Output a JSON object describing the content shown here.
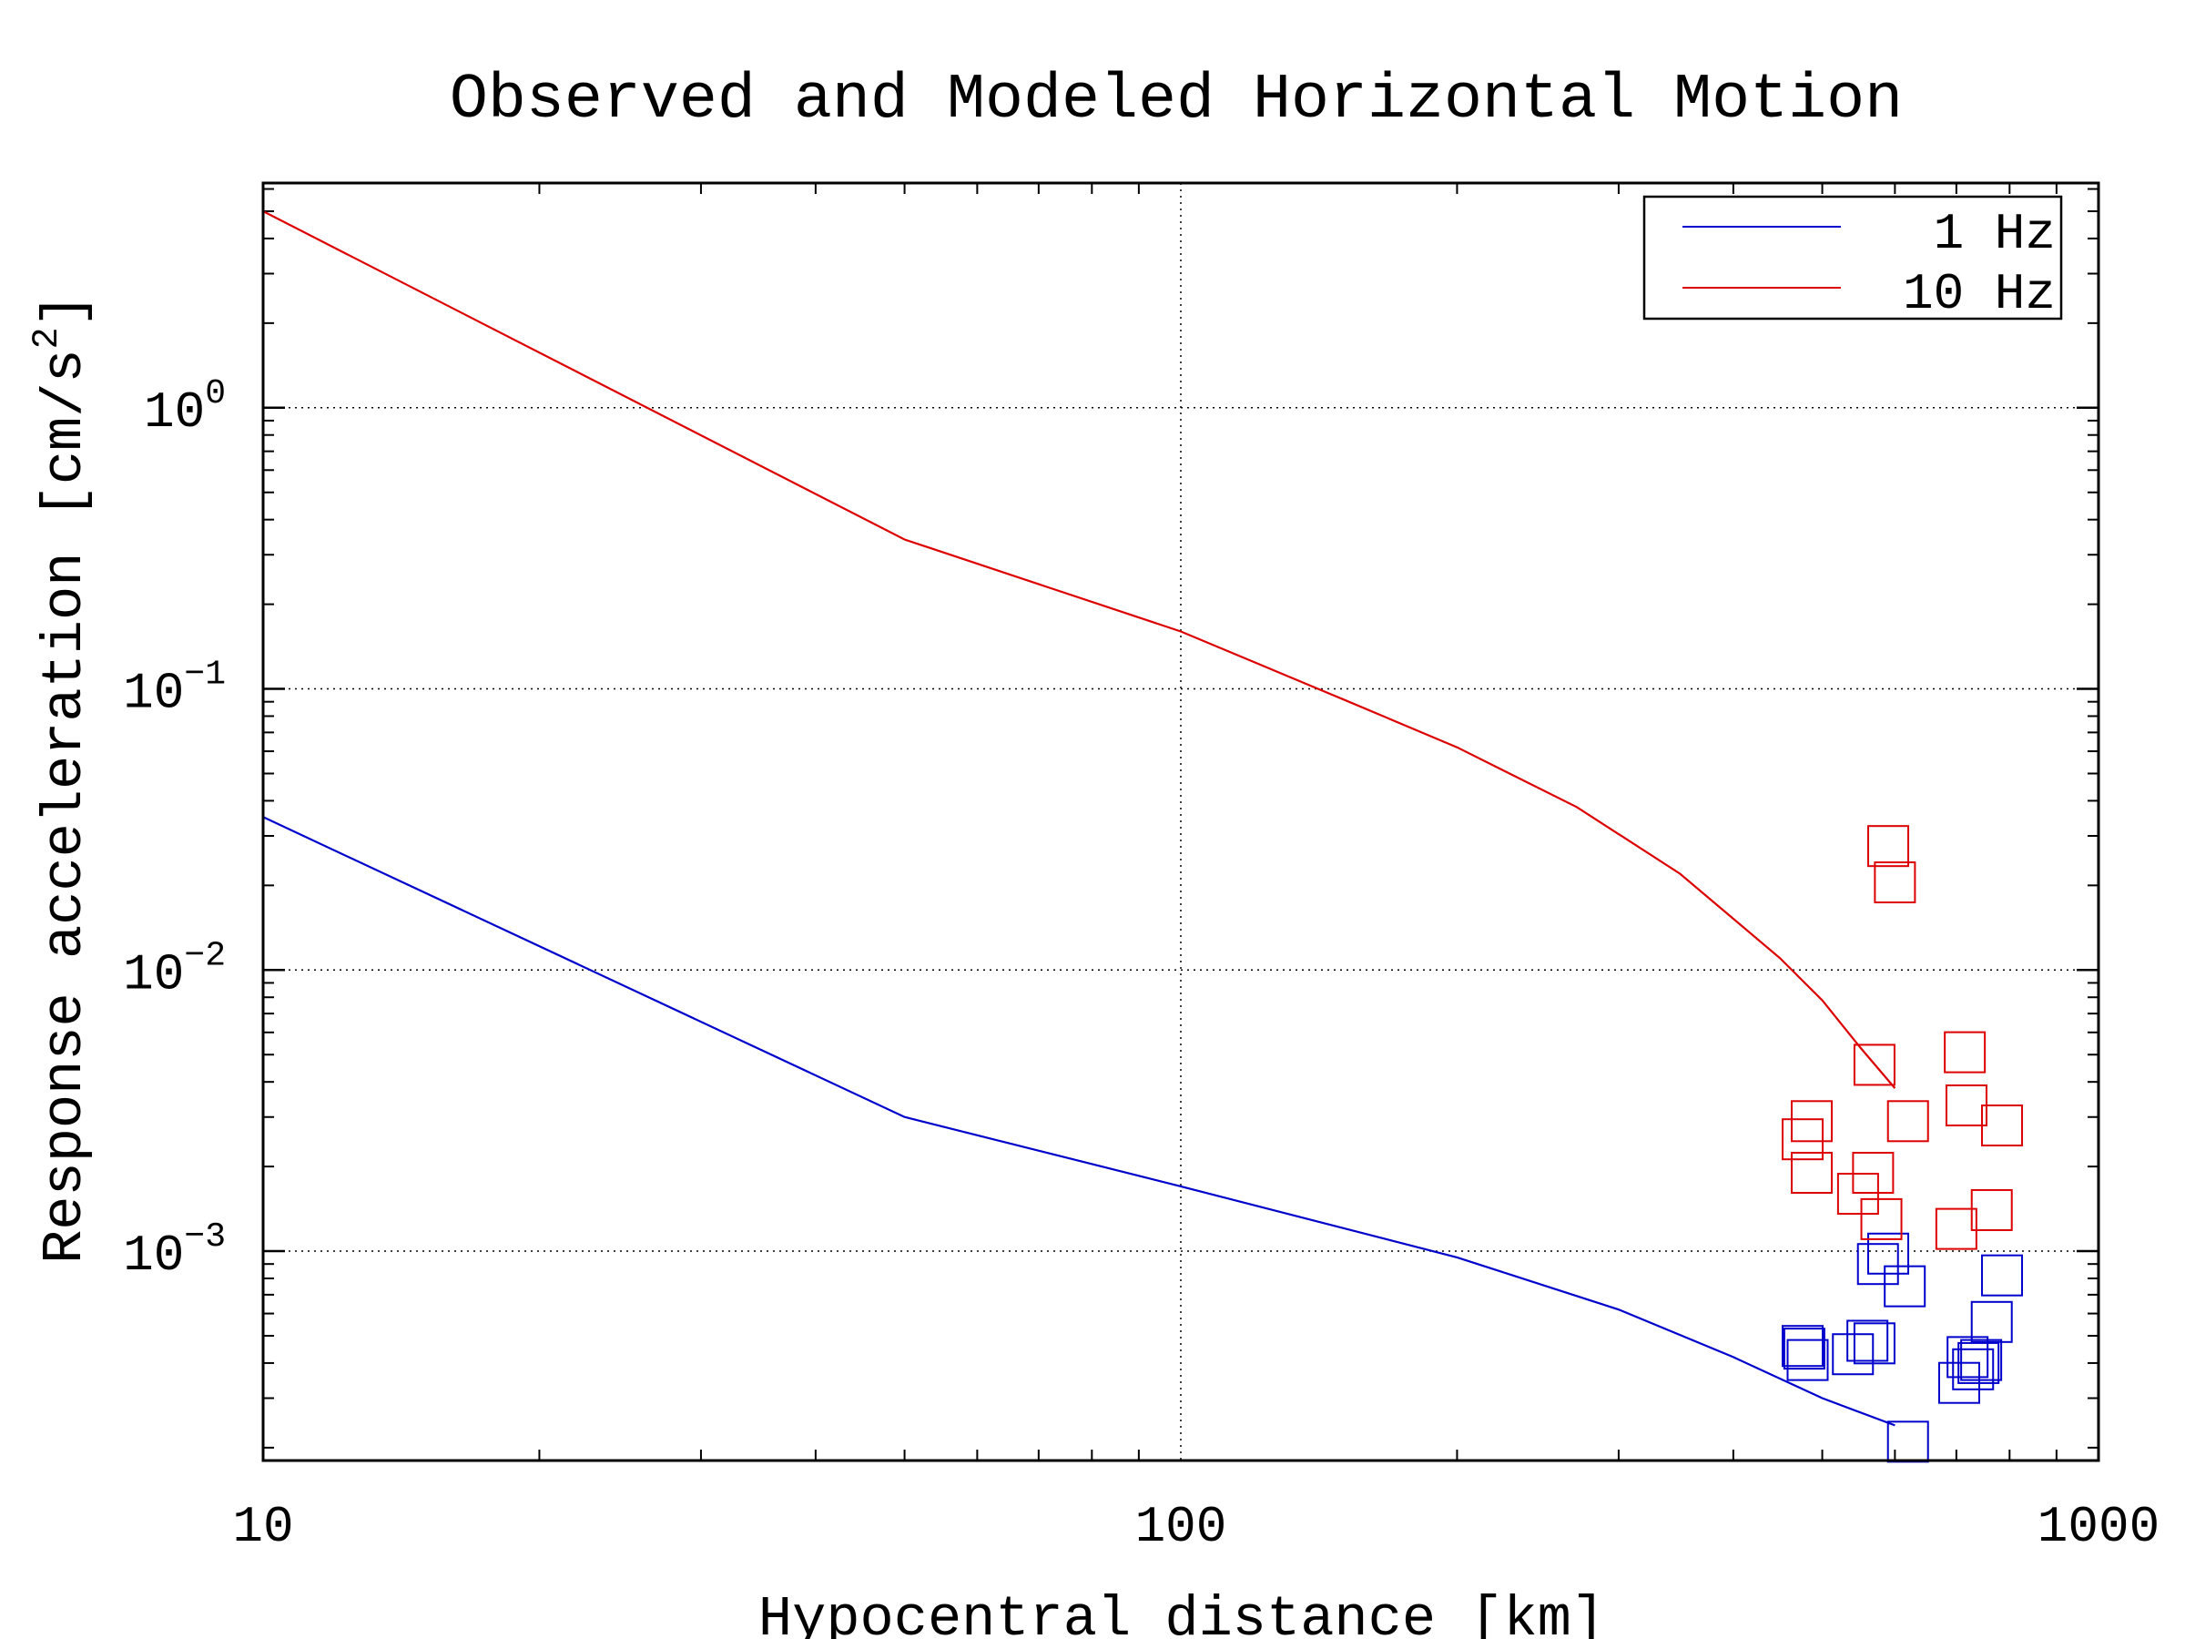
{
  "chart_data": {
    "type": "scatter",
    "title": "Observed and Modeled Horizontal Motion",
    "xlabel": "Hypocentral distance [km]",
    "ylabel_main": "Response acceleration [cm/s",
    "ylabel_sup": "2",
    "ylabel_end": "]",
    "x_scale": "log",
    "y_scale": "log",
    "xlim": [
      10,
      1000
    ],
    "ylim": [
      0.00018,
      6.3
    ],
    "x_ticks": [
      {
        "value": 10,
        "label": "10"
      },
      {
        "value": 100,
        "label": "100"
      },
      {
        "value": 1000,
        "label": "1000"
      }
    ],
    "y_ticks": [
      {
        "value": 1,
        "base": "10",
        "exp": "0"
      },
      {
        "value": 0.1,
        "base": "10",
        "exp": "−1"
      },
      {
        "value": 0.01,
        "base": "10",
        "exp": "−2"
      },
      {
        "value": 0.001,
        "base": "10",
        "exp": "−3"
      }
    ],
    "grid": true,
    "legend_position": "top-right",
    "series": [
      {
        "name": "1 Hz",
        "color": "#0000cc",
        "line": {
          "x": [
            10,
            50,
            100,
            200,
            300,
            400,
            500,
            600
          ],
          "y": [
            0.035,
            0.003,
            0.0017,
            0.00095,
            0.00062,
            0.00042,
            0.0003,
            0.00024
          ]
        },
        "observed": {
          "x": [
            476,
            478,
            482,
            540,
            560,
            570,
            575,
            590,
            615,
            620,
            705,
            720,
            730,
            740,
            745,
            765,
            785
          ],
          "y": [
            0.00046,
            0.00045,
            0.00041,
            0.00043,
            0.00048,
            0.00047,
            0.0009,
            0.00098,
            0.00075,
            0.00021,
            0.00034,
            0.00042,
            0.00038,
            0.0004,
            0.00041,
            0.00056,
            0.00082
          ]
        }
      },
      {
        "name": "10 Hz",
        "color": "#dd0000",
        "line": {
          "x": [
            10,
            50,
            100,
            150,
            200,
            270,
            350,
            450,
            500,
            550,
            600
          ],
          "y": [
            5.0,
            0.34,
            0.16,
            0.092,
            0.062,
            0.038,
            0.022,
            0.011,
            0.0078,
            0.0053,
            0.0038
          ]
        },
        "observed": {
          "x": [
            476,
            487,
            487,
            547,
            568,
            570,
            580,
            590,
            600,
            620,
            700,
            715,
            718,
            765,
            785
          ],
          "y": [
            0.0025,
            0.0029,
            0.0019,
            0.0016,
            0.0019,
            0.0046,
            0.0013,
            0.0276,
            0.0205,
            0.0029,
            0.0012,
            0.0051,
            0.0033,
            0.0014,
            0.0028
          ]
        }
      }
    ]
  }
}
